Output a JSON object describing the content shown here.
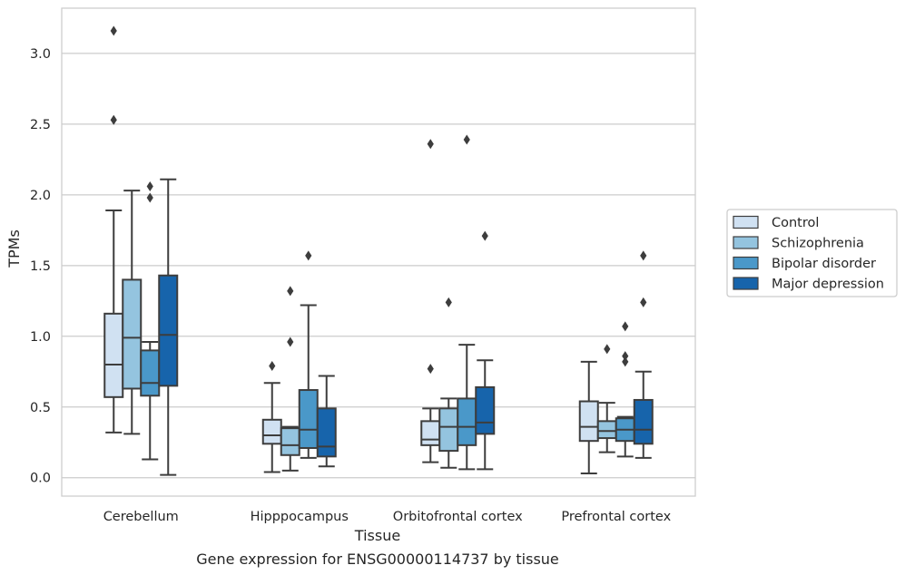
{
  "chart_data": {
    "type": "box",
    "title": "",
    "caption": "Gene expression for ENSG00000114737 by tissue",
    "xlabel": "Tissue",
    "ylabel": "TPMs",
    "ylim": [
      -0.13,
      3.32
    ],
    "yticks": [
      0.0,
      0.5,
      1.0,
      1.5,
      2.0,
      2.5,
      3.0
    ],
    "ytick_labels": [
      "0.0",
      "0.5",
      "1.0",
      "1.5",
      "2.0",
      "2.5",
      "3.0"
    ],
    "grid": "horizontal",
    "legend_position": "right",
    "categories": [
      "Cerebellum",
      "Hipppocampus",
      "Orbitofrontal cortex",
      "Prefrontal cortex"
    ],
    "series": [
      {
        "name": "Control",
        "color": "#d0e1f2",
        "boxes": [
          {
            "whislo": 0.32,
            "q1": 0.57,
            "med": 0.8,
            "q3": 1.16,
            "whishi": 1.89,
            "fliers": [
              2.53,
              3.16
            ]
          },
          {
            "whislo": 0.04,
            "q1": 0.24,
            "med": 0.3,
            "q3": 0.41,
            "whishi": 0.67,
            "fliers": [
              0.79
            ]
          },
          {
            "whislo": 0.11,
            "q1": 0.23,
            "med": 0.27,
            "q3": 0.4,
            "whishi": 0.49,
            "fliers": [
              0.77,
              2.36
            ]
          },
          {
            "whislo": 0.03,
            "q1": 0.26,
            "med": 0.36,
            "q3": 0.54,
            "whishi": 0.82,
            "fliers": []
          }
        ]
      },
      {
        "name": "Schizophrenia",
        "color": "#94c4df",
        "boxes": [
          {
            "whislo": 0.31,
            "q1": 0.63,
            "med": 0.99,
            "q3": 1.4,
            "whishi": 2.03,
            "fliers": []
          },
          {
            "whislo": 0.05,
            "q1": 0.16,
            "med": 0.23,
            "q3": 0.35,
            "whishi": 0.36,
            "fliers": [
              0.96,
              1.32
            ]
          },
          {
            "whislo": 0.07,
            "q1": 0.19,
            "med": 0.36,
            "q3": 0.49,
            "whishi": 0.56,
            "fliers": [
              1.24
            ]
          },
          {
            "whislo": 0.18,
            "q1": 0.28,
            "med": 0.33,
            "q3": 0.4,
            "whishi": 0.53,
            "fliers": [
              0.91
            ]
          }
        ]
      },
      {
        "name": "Bipolar disorder",
        "color": "#4a98c9",
        "boxes": [
          {
            "whislo": 0.13,
            "q1": 0.58,
            "med": 0.67,
            "q3": 0.9,
            "whishi": 0.96,
            "fliers": [
              1.98,
              2.06
            ]
          },
          {
            "whislo": 0.14,
            "q1": 0.21,
            "med": 0.34,
            "q3": 0.62,
            "whishi": 1.22,
            "fliers": [
              1.57
            ]
          },
          {
            "whislo": 0.06,
            "q1": 0.23,
            "med": 0.36,
            "q3": 0.56,
            "whishi": 0.94,
            "fliers": [
              2.39
            ]
          },
          {
            "whislo": 0.15,
            "q1": 0.26,
            "med": 0.34,
            "q3": 0.42,
            "whishi": 0.43,
            "fliers": [
              0.82,
              0.86,
              1.07
            ]
          }
        ]
      },
      {
        "name": "Major depression",
        "color": "#1764ab",
        "boxes": [
          {
            "whislo": 0.02,
            "q1": 0.65,
            "med": 1.01,
            "q3": 1.43,
            "whishi": 2.11,
            "fliers": []
          },
          {
            "whislo": 0.08,
            "q1": 0.15,
            "med": 0.22,
            "q3": 0.49,
            "whishi": 0.72,
            "fliers": []
          },
          {
            "whislo": 0.06,
            "q1": 0.31,
            "med": 0.39,
            "q3": 0.64,
            "whishi": 0.83,
            "fliers": [
              1.71
            ]
          },
          {
            "whislo": 0.14,
            "q1": 0.24,
            "med": 0.34,
            "q3": 0.55,
            "whishi": 0.75,
            "fliers": [
              1.24,
              1.57
            ]
          }
        ]
      }
    ]
  }
}
